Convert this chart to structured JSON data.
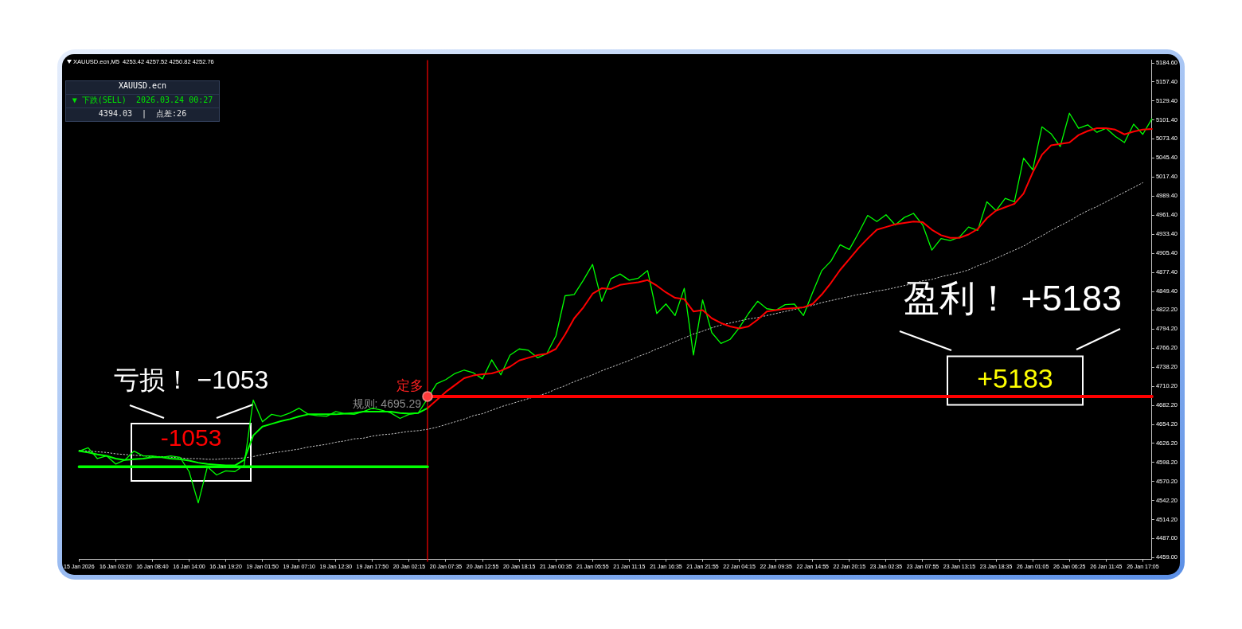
{
  "chart_data": {
    "type": "line",
    "title": "XAUUSD.ecn,M5  4253.42 4257.52 4250.82 4252.76",
    "categories": [
      "15 Jan 2026",
      null,
      null,
      null,
      "16 Jan 03:20",
      null,
      null,
      null,
      "16 Jan 08:40",
      null,
      null,
      null,
      "16 Jan 14:00",
      null,
      null,
      null,
      "16 Jan 19:20",
      null,
      null,
      null,
      "19 Jan 01:50",
      null,
      null,
      null,
      "19 Jan 07:10",
      null,
      null,
      null,
      "19 Jan 12:30",
      null,
      null,
      null,
      "19 Jan 17:50",
      null,
      null,
      null,
      "20 Jan 02:15",
      null,
      null,
      null,
      "20 Jan 07:35",
      null,
      null,
      null,
      "20 Jan 12:55",
      null,
      null,
      null,
      "20 Jan 18:15",
      null,
      null,
      null,
      "21 Jan 00:35",
      null,
      null,
      null,
      "21 Jan 05:55",
      null,
      null,
      null,
      "21 Jan 11:15",
      null,
      null,
      null,
      "21 Jan 16:35",
      null,
      null,
      null,
      "21 Jan 21:55",
      null,
      null,
      null,
      "22 Jan 04:15",
      null,
      null,
      null,
      "22 Jan 09:35",
      null,
      null,
      null,
      "22 Jan 14:55",
      null,
      null,
      null,
      "22 Jan 20:15",
      null,
      null,
      null,
      "23 Jan 02:35",
      null,
      null,
      null,
      "23 Jan 07:55",
      null,
      null,
      null,
      "23 Jan 13:15",
      null,
      null,
      null,
      "23 Jan 18:35",
      null,
      null,
      null,
      "26 Jan 01:05",
      null,
      null,
      null,
      "26 Jan 06:25",
      null,
      null,
      null,
      "26 Jan 11:45",
      null,
      null,
      null,
      "26 Jan 17:05",
      null
    ],
    "ylim": [
      4456,
      5189
    ],
    "yticks": [
      {
        "value": 4459,
        "label": "4459.00"
      },
      {
        "value": 4487,
        "label": "4487.00"
      },
      {
        "value": 4514.2,
        "label": "4514.20"
      },
      {
        "value": 4542.2,
        "label": "4542.20"
      },
      {
        "value": 4570.2,
        "label": "4570.20"
      },
      {
        "value": 4598.2,
        "label": "4598.20"
      },
      {
        "value": 4626.2,
        "label": "4626.20"
      },
      {
        "value": 4654.2,
        "label": "4654.20"
      },
      {
        "value": 4682.2,
        "label": "4682.20"
      },
      {
        "value": 4710.2,
        "label": "4710.20"
      },
      {
        "value": 4738.2,
        "label": "4738.20"
      },
      {
        "value": 4766.2,
        "label": "4766.20"
      },
      {
        "value": 4794.2,
        "label": "4794.20"
      },
      {
        "value": 4822.2,
        "label": "4822.20"
      },
      {
        "value": 4849.4,
        "label": "4849.40"
      },
      {
        "value": 4877.4,
        "label": "4877.40"
      },
      {
        "value": 4905.4,
        "label": "4905.40"
      },
      {
        "value": 4933.4,
        "label": "4933.40"
      },
      {
        "value": 4961.4,
        "label": "4961.40"
      },
      {
        "value": 4989.4,
        "label": "4989.40"
      },
      {
        "value": 5017.4,
        "label": "5017.40"
      },
      {
        "value": 5045.4,
        "label": "5045.40"
      },
      {
        "value": 5073.4,
        "label": "5073.40"
      },
      {
        "value": 5101.4,
        "label": "5101.40"
      },
      {
        "value": 5129.4,
        "label": "5129.40"
      },
      {
        "value": 5157.4,
        "label": "5157.40"
      },
      {
        "value": 5184.6,
        "label": "5184.60"
      }
    ],
    "series": [
      {
        "color": "#c8c8c8",
        "line_style": "dotted",
        "values": [
          4616,
          4615,
          4614,
          4613,
          4611,
          4610,
          4609,
          4608,
          4607,
          4607,
          4606,
          4605,
          4604,
          4604,
          4603,
          4603,
          4604,
          4604,
          4605,
          4607,
          4610,
          4612,
          4614,
          4616,
          4618,
          4621,
          4623,
          4625,
          4628,
          4630,
          4633,
          4634,
          4637,
          4639,
          4640,
          4642,
          4644,
          4645,
          4647,
          4650,
          4654,
          4658,
          4662,
          4667,
          4670,
          4675,
          4680,
          4684,
          4688,
          4692,
          4696,
          4700,
          4706,
          4711,
          4717,
          4722,
          4727,
          4733,
          4738,
          4743,
          4748,
          4754,
          4759,
          4765,
          4770,
          4776,
          4781,
          4787,
          4791,
          4796,
          4800,
          4803,
          4806,
          4809,
          4811,
          4814,
          4817,
          4820,
          4823,
          4826,
          4829,
          4833,
          4836,
          4839,
          4842,
          4845,
          4847,
          4850,
          4852,
          4855,
          4858,
          4861,
          4865,
          4867,
          4871,
          4874,
          4877,
          4881,
          4887,
          4892,
          4898,
          4904,
          4910,
          4916,
          4924,
          4931,
          4939,
          4946,
          4953,
          4961,
          4968,
          4974,
          4981,
          4988,
          4995,
          5002,
          5009,
          null
        ]
      },
      {
        "color": "#00ff00",
        "values": [
          4615,
          4620,
          4604,
          4608,
          4596,
          4602,
          4615,
          4608,
          4608,
          4606,
          4608,
          4606,
          4585,
          4539,
          4592,
          4580,
          4586,
          4585,
          4594,
          4690,
          4658,
          4669,
          4666,
          4671,
          4678,
          4669,
          4667,
          4666,
          4673,
          4670,
          4669,
          4673,
          4678,
          4675,
          4671,
          4663,
          4669,
          4671,
          4692,
          4714,
          4720,
          4729,
          4734,
          4730,
          4721,
          4749,
          4727,
          4756,
          4765,
          4763,
          4752,
          4758,
          4784,
          4843,
          4845,
          4866,
          4889,
          4835,
          4868,
          4875,
          4866,
          4869,
          4880,
          4817,
          4831,
          4814,
          4854,
          4756,
          4837,
          4789,
          4773,
          4779,
          4796,
          4817,
          4835,
          4824,
          4822,
          4830,
          4831,
          4814,
          4848,
          4880,
          4894,
          4918,
          4911,
          4935,
          4961,
          4952,
          4962,
          4947,
          4958,
          4964,
          4947,
          4910,
          4927,
          4924,
          4929,
          4944,
          4939,
          4981,
          4968,
          4986,
          4981,
          5045,
          5028,
          5091,
          5081,
          5062,
          5111,
          5089,
          5094,
          5083,
          5089,
          5077,
          5068,
          5095,
          5080,
          5103
        ]
      },
      {
        "color": "#00ff00",
        "values": [
          4615,
          4613,
          4610,
          4608,
          4604,
          4602,
          4603,
          4604,
          4606,
          4606,
          4604,
          4603,
          4601,
          4598,
          4596,
          4595,
          4594,
          4594,
          4602,
          4638,
          4651,
          4655,
          4659,
          4662,
          4666,
          4669,
          4669,
          4669,
          4669,
          4670,
          4671,
          4673,
          4673,
          4673,
          4673,
          4671,
          4670,
          4671,
          4678,
          null,
          null,
          null,
          null,
          null,
          null,
          null,
          null,
          null,
          null,
          null,
          null,
          null,
          null,
          null,
          null,
          null,
          null,
          null,
          null,
          null,
          null,
          null,
          null,
          null,
          null,
          null,
          null,
          null,
          null,
          null,
          null,
          null,
          null,
          null,
          null,
          null,
          null,
          null,
          null,
          null,
          null,
          null,
          null,
          null,
          null,
          null,
          null,
          null,
          null,
          null,
          null,
          null,
          null,
          null,
          null,
          null,
          null,
          null,
          null,
          null,
          null,
          null,
          null,
          null,
          null,
          null,
          null,
          null,
          null,
          null,
          null,
          null,
          null,
          null,
          null,
          null,
          null,
          null
        ]
      },
      {
        "color": "#ff0000",
        "values": [
          null,
          null,
          null,
          null,
          null,
          null,
          null,
          null,
          null,
          null,
          null,
          null,
          null,
          null,
          null,
          null,
          null,
          null,
          null,
          null,
          null,
          null,
          null,
          null,
          null,
          null,
          null,
          null,
          null,
          null,
          null,
          null,
          null,
          null,
          null,
          null,
          null,
          null,
          4678,
          4690,
          4702,
          4712,
          4722,
          4726,
          4728,
          4729,
          4733,
          4739,
          4748,
          4752,
          4756,
          4758,
          4765,
          4786,
          4810,
          4826,
          4846,
          4854,
          4853,
          4859,
          4861,
          4863,
          4866,
          4858,
          4848,
          4840,
          4838,
          4820,
          4822,
          4810,
          4803,
          4798,
          4795,
          4798,
          4808,
          4820,
          4822,
          4824,
          4825,
          4826,
          4831,
          4845,
          4862,
          4881,
          4897,
          4913,
          4927,
          4940,
          4944,
          4948,
          4950,
          4952,
          4951,
          4940,
          4932,
          4928,
          4928,
          4933,
          4941,
          4957,
          4968,
          4973,
          4978,
          4993,
          5024,
          5050,
          5064,
          5066,
          5068,
          5079,
          5085,
          5089,
          5089,
          5087,
          5080,
          5084,
          5087,
          5088
        ]
      },
      {
        "color": "#00ff00",
        "values": [
          4592,
          4592,
          4592,
          4592,
          4592,
          4592,
          4592,
          4592,
          4592,
          4592,
          4592,
          4592,
          4592,
          4592,
          4592,
          4592,
          4592,
          4592,
          4592,
          4592,
          4592,
          4592,
          4592,
          4592,
          4592,
          4592,
          4592,
          4592,
          4592,
          4592,
          4592,
          4592,
          4592,
          4592,
          4592,
          4592,
          4592,
          4592,
          4592,
          null,
          null,
          null,
          null,
          null,
          null,
          null,
          null,
          null,
          null,
          null,
          null,
          null,
          null,
          null,
          null,
          null,
          null,
          null,
          null,
          null,
          null,
          null,
          null,
          null,
          null,
          null,
          null,
          null,
          null,
          null,
          null,
          null,
          null,
          null,
          null,
          null,
          null,
          null,
          null,
          null,
          null,
          null,
          null,
          null,
          null,
          null,
          null,
          null,
          null,
          null,
          null,
          null,
          null,
          null,
          null,
          null,
          null,
          null,
          null,
          null,
          null,
          null,
          null,
          null,
          null,
          null,
          null,
          null,
          null,
          null,
          null,
          null,
          null,
          null,
          null,
          null,
          null,
          null
        ]
      },
      {
        "color": "#ff0000",
        "values": [
          null,
          null,
          null,
          null,
          null,
          null,
          null,
          null,
          null,
          null,
          null,
          null,
          null,
          null,
          null,
          null,
          null,
          null,
          null,
          null,
          null,
          null,
          null,
          null,
          null,
          null,
          null,
          null,
          null,
          null,
          null,
          null,
          null,
          null,
          null,
          null,
          null,
          null,
          4695.29,
          4695.29,
          4695.29,
          4695.29,
          4695.29,
          4695.29,
          4695.29,
          4695.29,
          4695.29,
          4695.29,
          4695.29,
          4695.29,
          4695.29,
          4695.29,
          4695.29,
          4695.29,
          4695.29,
          4695.29,
          4695.29,
          4695.29,
          4695.29,
          4695.29,
          4695.29,
          4695.29,
          4695.29,
          4695.29,
          4695.29,
          4695.29,
          4695.29,
          4695.29,
          4695.29,
          4695.29,
          4695.29,
          4695.29,
          4695.29,
          4695.29,
          4695.29,
          4695.29,
          4695.29,
          4695.29,
          4695.29,
          4695.29,
          4695.29,
          4695.29,
          4695.29,
          4695.29,
          4695.29,
          4695.29,
          4695.29,
          4695.29,
          4695.29,
          4695.29,
          4695.29,
          4695.29,
          4695.29,
          4695.29,
          4695.29,
          4695.29,
          4695.29,
          4695.29,
          4695.29,
          4695.29,
          4695.29,
          4695.29,
          4695.29,
          4695.29,
          4695.29,
          4695.29,
          4695.29,
          4695.29,
          4695.29,
          4695.29,
          4695.29,
          4695.29,
          4695.29,
          4695.29,
          4695.29,
          4695.29,
          4695.29,
          4695.29
        ]
      },
      {
        "type": "scatter",
        "color": "#ff3b3b",
        "marker": "circle",
        "values": [
          null,
          null,
          null,
          null,
          null,
          null,
          null,
          null,
          null,
          null,
          null,
          null,
          null,
          null,
          null,
          null,
          null,
          null,
          null,
          null,
          null,
          null,
          null,
          null,
          null,
          null,
          null,
          null,
          null,
          null,
          null,
          null,
          null,
          null,
          null,
          null,
          null,
          null,
          4695.29,
          null,
          null,
          null,
          null,
          null,
          null,
          null,
          null,
          null,
          null,
          null,
          null,
          null,
          null,
          null,
          null,
          null,
          null,
          null,
          null,
          null,
          null,
          null,
          null,
          null,
          null,
          null,
          null,
          null,
          null,
          null,
          null,
          null,
          null,
          null,
          null,
          null,
          null,
          null,
          null,
          null,
          null,
          null,
          null,
          null,
          null,
          null,
          null,
          null,
          null,
          null,
          null,
          null,
          null,
          null,
          null,
          null,
          null,
          null,
          null,
          null,
          null,
          null,
          null,
          null,
          null,
          null,
          null,
          null,
          null,
          null,
          null,
          null,
          null,
          null,
          null,
          null,
          null,
          null
        ]
      }
    ],
    "annotations": [
      "XAUUSD.ecn",
      "▼ 下跌(SELL)  2026.03.24 00:27",
      "4394.03  |  点差:26",
      "亏损！ −1053",
      "-1053",
      "盈利！ +5183",
      "+5183",
      "定多",
      "规则: 4695.29"
    ]
  }
}
